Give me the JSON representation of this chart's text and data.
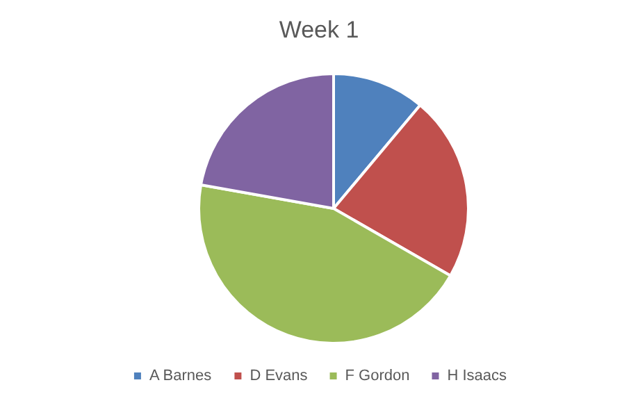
{
  "chart_data": {
    "type": "pie",
    "title": "Week 1",
    "categories": [
      "A Barnes",
      "D Evans",
      "F Gordon",
      "H Isaacs"
    ],
    "values": [
      11.1,
      22.2,
      44.5,
      22.2
    ],
    "colors": [
      "#4f81bd",
      "#c0504d",
      "#9bbb59",
      "#8064a2"
    ],
    "legend": "bottom"
  }
}
